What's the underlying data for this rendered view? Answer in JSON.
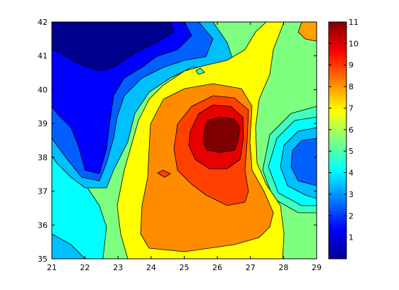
{
  "chart_data": {
    "type": "contourf",
    "title": "",
    "xlabel": "",
    "ylabel": "",
    "xlim": [
      21,
      29
    ],
    "ylim": [
      35,
      42
    ],
    "x_ticks": [
      21,
      22,
      23,
      24,
      25,
      26,
      27,
      28,
      29
    ],
    "y_ticks": [
      35,
      36,
      37,
      38,
      39,
      40,
      41,
      42
    ],
    "colorbar": {
      "range": [
        0,
        11
      ],
      "ticks": [
        1,
        2,
        3,
        4,
        5,
        6,
        7,
        8,
        9,
        10,
        11
      ],
      "colormap": "jet"
    },
    "peak": {
      "x": 25.9,
      "y": 38.6,
      "value": 11
    },
    "low_regions": [
      {
        "x": 22.3,
        "y": 41.4,
        "value": 0.5
      },
      {
        "x": 28.4,
        "y": 37.7,
        "value": 2.5
      }
    ]
  },
  "colors": {
    "jet_stops": [
      "#00008f",
      "#0000ff",
      "#00ffff",
      "#ffff00",
      "#ff0000",
      "#800000"
    ]
  }
}
